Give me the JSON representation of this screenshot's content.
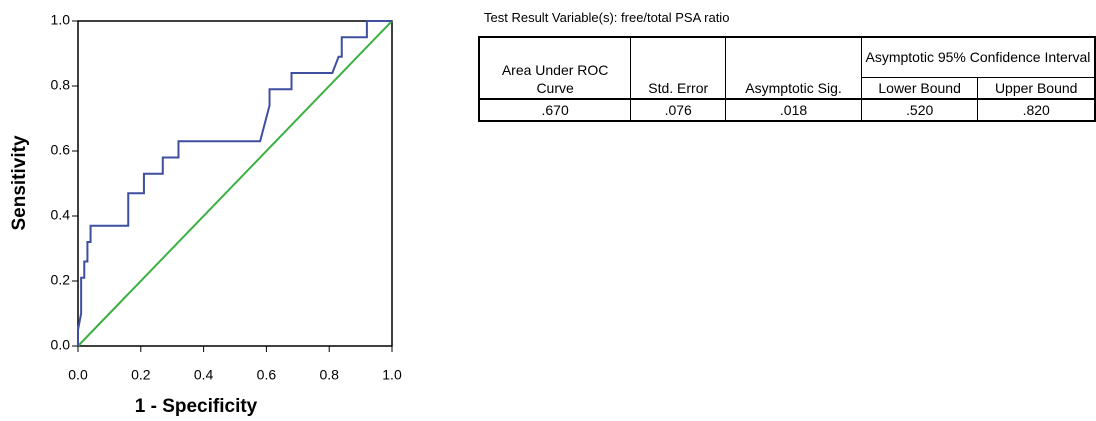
{
  "chart_data": {
    "type": "line",
    "xlabel": "1 - Specificity",
    "ylabel": "Sensitivity",
    "xlim": [
      0,
      1
    ],
    "ylim": [
      0,
      1
    ],
    "xticks": [
      {
        "value": 0,
        "label": "0.0"
      },
      0.2,
      0.4,
      0.6,
      0.8,
      {
        "value": 1,
        "label": "1.0"
      }
    ],
    "yticks": [
      {
        "value": 0,
        "label": "0.0"
      },
      0.2,
      0.4,
      0.6,
      0.8,
      {
        "value": 1,
        "label": "1.0"
      }
    ],
    "series": [
      {
        "color": "#3f4fa0",
        "x": [
          0,
          0,
          0.01,
          0.01,
          0.02,
          0.02,
          0.03,
          0.03,
          0.04,
          0.04,
          0.16,
          0.16,
          0.21,
          0.21,
          0.27,
          0.27,
          0.32,
          0.32,
          0.58,
          0.61,
          0.61,
          0.68,
          0.68,
          0.81,
          0.83,
          0.84,
          0.84,
          0.92,
          0.92,
          1
        ],
        "values": [
          0,
          0.05,
          0.1,
          0.21,
          0.21,
          0.26,
          0.26,
          0.32,
          0.32,
          0.37,
          0.37,
          0.47,
          0.47,
          0.53,
          0.53,
          0.58,
          0.58,
          0.63,
          0.63,
          0.74,
          0.79,
          0.79,
          0.84,
          0.84,
          0.89,
          0.89,
          0.95,
          0.95,
          1,
          1
        ]
      },
      {
        "color": "#3cb043",
        "x": [
          0,
          1
        ],
        "values": [
          0,
          1
        ]
      }
    ]
  },
  "table": {
    "caption": "Test Result Variable(s): free/total PSA ratio",
    "headers": [
      "Area Under ROC Curve",
      "Std. Error",
      "Asymptotic Sig."
    ],
    "group": "Asymptotic 95% Confidence Interval",
    "subheaders": [
      "Lower Bound",
      "Upper Bound"
    ],
    "row": [
      ".670",
      ".076",
      ".018",
      ".520",
      ".820"
    ]
  }
}
